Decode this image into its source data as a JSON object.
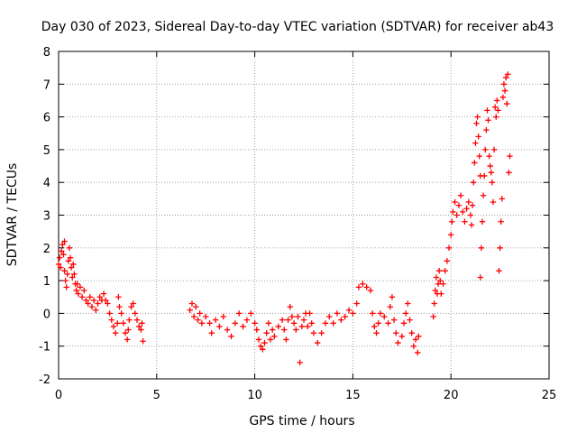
{
  "chart_data": {
    "type": "scatter",
    "title": "Day 030 of 2023, Sidereal Day-to-day VTEC variation (SDTVAR) for receiver ab43",
    "xlabel": "GPS time / hours",
    "ylabel": "SDTVAR / TECUs",
    "xlim": [
      0,
      25
    ],
    "ylim": [
      -2,
      8
    ],
    "xticks": [
      0,
      5,
      10,
      15,
      20,
      25
    ],
    "yticks": [
      -2,
      -1,
      0,
      1,
      2,
      3,
      4,
      5,
      6,
      7,
      8
    ],
    "grid": true,
    "marker": "+",
    "series": [
      {
        "name": "SDTVAR",
        "color": "#ff0000",
        "points": [
          [
            0.0,
            1.5
          ],
          [
            0.05,
            1.7
          ],
          [
            0.1,
            1.4
          ],
          [
            0.15,
            1.9
          ],
          [
            0.2,
            2.1
          ],
          [
            0.25,
            1.8
          ],
          [
            0.3,
            2.2
          ],
          [
            0.3,
            1.3
          ],
          [
            0.35,
            1.0
          ],
          [
            0.4,
            0.8
          ],
          [
            0.45,
            1.2
          ],
          [
            0.5,
            1.6
          ],
          [
            0.55,
            2.0
          ],
          [
            0.6,
            1.7
          ],
          [
            0.65,
            1.4
          ],
          [
            0.7,
            1.1
          ],
          [
            0.75,
            1.5
          ],
          [
            0.8,
            1.2
          ],
          [
            0.85,
            0.9
          ],
          [
            0.9,
            0.7
          ],
          [
            0.95,
            0.9
          ],
          [
            1.0,
            0.6
          ],
          [
            1.1,
            0.8
          ],
          [
            1.2,
            0.5
          ],
          [
            1.3,
            0.7
          ],
          [
            1.4,
            0.4
          ],
          [
            1.5,
            0.3
          ],
          [
            1.6,
            0.5
          ],
          [
            1.7,
            0.2
          ],
          [
            1.8,
            0.4
          ],
          [
            1.9,
            0.1
          ],
          [
            2.0,
            0.3
          ],
          [
            2.1,
            0.5
          ],
          [
            2.2,
            0.4
          ],
          [
            2.3,
            0.6
          ],
          [
            2.4,
            0.4
          ],
          [
            2.5,
            0.3
          ],
          [
            2.6,
            0.0
          ],
          [
            2.7,
            -0.2
          ],
          [
            2.8,
            -0.4
          ],
          [
            2.9,
            -0.6
          ],
          [
            3.0,
            -0.3
          ],
          [
            3.05,
            0.5
          ],
          [
            3.1,
            0.2
          ],
          [
            3.2,
            0.0
          ],
          [
            3.3,
            -0.3
          ],
          [
            3.4,
            -0.6
          ],
          [
            3.5,
            -0.8
          ],
          [
            3.55,
            -0.5
          ],
          [
            3.6,
            -0.2
          ],
          [
            3.7,
            0.2
          ],
          [
            3.8,
            0.3
          ],
          [
            3.9,
            0.0
          ],
          [
            4.0,
            -0.2
          ],
          [
            4.1,
            -0.4
          ],
          [
            4.2,
            -0.5
          ],
          [
            4.25,
            -0.3
          ],
          [
            4.3,
            -0.85
          ],
          [
            6.7,
            0.1
          ],
          [
            6.8,
            0.3
          ],
          [
            6.9,
            -0.1
          ],
          [
            7.0,
            0.2
          ],
          [
            7.1,
            -0.2
          ],
          [
            7.2,
            0.0
          ],
          [
            7.3,
            -0.3
          ],
          [
            7.5,
            -0.1
          ],
          [
            7.7,
            -0.3
          ],
          [
            7.8,
            -0.6
          ],
          [
            8.0,
            -0.2
          ],
          [
            8.2,
            -0.4
          ],
          [
            8.4,
            -0.1
          ],
          [
            8.6,
            -0.5
          ],
          [
            8.8,
            -0.7
          ],
          [
            9.0,
            -0.3
          ],
          [
            9.2,
            0.0
          ],
          [
            9.4,
            -0.4
          ],
          [
            9.6,
            -0.2
          ],
          [
            9.8,
            0.0
          ],
          [
            10.0,
            -0.3
          ],
          [
            10.1,
            -0.5
          ],
          [
            10.2,
            -0.8
          ],
          [
            10.3,
            -1.0
          ],
          [
            10.4,
            -1.1
          ],
          [
            10.5,
            -0.9
          ],
          [
            10.6,
            -0.6
          ],
          [
            10.7,
            -0.3
          ],
          [
            10.8,
            -0.8
          ],
          [
            10.9,
            -0.5
          ],
          [
            11.0,
            -0.7
          ],
          [
            11.2,
            -0.4
          ],
          [
            11.4,
            -0.2
          ],
          [
            11.5,
            -0.5
          ],
          [
            11.6,
            -0.8
          ],
          [
            11.7,
            -0.2
          ],
          [
            11.8,
            0.2
          ],
          [
            11.9,
            -0.1
          ],
          [
            12.0,
            -0.3
          ],
          [
            12.1,
            -0.5
          ],
          [
            12.2,
            -0.1
          ],
          [
            12.3,
            -1.5
          ],
          [
            12.4,
            -0.4
          ],
          [
            12.5,
            -0.2
          ],
          [
            12.6,
            0.0
          ],
          [
            12.7,
            -0.4
          ],
          [
            12.8,
            0.0
          ],
          [
            12.9,
            -0.3
          ],
          [
            13.0,
            -0.6
          ],
          [
            13.2,
            -0.9
          ],
          [
            13.4,
            -0.6
          ],
          [
            13.6,
            -0.3
          ],
          [
            13.8,
            -0.1
          ],
          [
            14.0,
            -0.3
          ],
          [
            14.2,
            0.0
          ],
          [
            14.4,
            -0.2
          ],
          [
            14.6,
            -0.1
          ],
          [
            14.8,
            0.1
          ],
          [
            15.0,
            0.0
          ],
          [
            15.2,
            0.3
          ],
          [
            15.3,
            0.8
          ],
          [
            15.5,
            0.9
          ],
          [
            15.7,
            0.8
          ],
          [
            15.9,
            0.7
          ],
          [
            16.0,
            0.0
          ],
          [
            16.1,
            -0.4
          ],
          [
            16.2,
            -0.6
          ],
          [
            16.3,
            -0.3
          ],
          [
            16.4,
            0.0
          ],
          [
            16.6,
            -0.1
          ],
          [
            16.8,
            -0.3
          ],
          [
            16.9,
            0.2
          ],
          [
            17.0,
            0.5
          ],
          [
            17.1,
            -0.2
          ],
          [
            17.2,
            -0.6
          ],
          [
            17.3,
            -0.9
          ],
          [
            17.5,
            -0.7
          ],
          [
            17.6,
            -0.3
          ],
          [
            17.7,
            0.0
          ],
          [
            17.8,
            0.3
          ],
          [
            17.9,
            -0.2
          ],
          [
            18.0,
            -0.6
          ],
          [
            18.1,
            -1.0
          ],
          [
            18.2,
            -0.8
          ],
          [
            18.3,
            -1.2
          ],
          [
            18.35,
            -0.7
          ],
          [
            19.1,
            -0.1
          ],
          [
            19.15,
            0.3
          ],
          [
            19.2,
            0.7
          ],
          [
            19.25,
            1.1
          ],
          [
            19.3,
            0.6
          ],
          [
            19.35,
            0.9
          ],
          [
            19.4,
            1.3
          ],
          [
            19.45,
            1.0
          ],
          [
            19.5,
            0.6
          ],
          [
            19.6,
            0.9
          ],
          [
            19.7,
            1.3
          ],
          [
            19.8,
            1.6
          ],
          [
            19.9,
            2.0
          ],
          [
            20.0,
            2.4
          ],
          [
            20.05,
            2.8
          ],
          [
            20.1,
            3.1
          ],
          [
            20.2,
            3.4
          ],
          [
            20.3,
            3.0
          ],
          [
            20.4,
            3.3
          ],
          [
            20.5,
            3.6
          ],
          [
            20.6,
            3.1
          ],
          [
            20.7,
            2.8
          ],
          [
            20.8,
            3.2
          ],
          [
            20.9,
            3.4
          ],
          [
            21.0,
            3.0
          ],
          [
            21.05,
            2.7
          ],
          [
            21.1,
            3.3
          ],
          [
            21.15,
            4.0
          ],
          [
            21.2,
            4.6
          ],
          [
            21.25,
            5.2
          ],
          [
            21.3,
            5.8
          ],
          [
            21.35,
            6.0
          ],
          [
            21.4,
            5.4
          ],
          [
            21.45,
            4.8
          ],
          [
            21.5,
            4.2
          ],
          [
            21.5,
            1.1
          ],
          [
            21.55,
            2.0
          ],
          [
            21.6,
            2.8
          ],
          [
            21.65,
            3.6
          ],
          [
            21.7,
            4.2
          ],
          [
            21.75,
            5.0
          ],
          [
            21.8,
            5.6
          ],
          [
            21.85,
            6.2
          ],
          [
            21.9,
            5.9
          ],
          [
            21.95,
            4.8
          ],
          [
            22.0,
            4.5
          ],
          [
            22.05,
            4.3
          ],
          [
            22.1,
            4.0
          ],
          [
            22.15,
            3.4
          ],
          [
            22.2,
            5.0
          ],
          [
            22.25,
            6.3
          ],
          [
            22.3,
            6.0
          ],
          [
            22.35,
            6.5
          ],
          [
            22.4,
            6.2
          ],
          [
            22.45,
            1.3
          ],
          [
            22.5,
            2.0
          ],
          [
            22.55,
            2.8
          ],
          [
            22.6,
            3.5
          ],
          [
            22.65,
            6.6
          ],
          [
            22.7,
            7.0
          ],
          [
            22.75,
            6.8
          ],
          [
            22.8,
            7.2
          ],
          [
            22.85,
            6.4
          ],
          [
            22.9,
            7.3
          ],
          [
            22.95,
            4.3
          ],
          [
            23.0,
            4.8
          ]
        ]
      }
    ]
  }
}
